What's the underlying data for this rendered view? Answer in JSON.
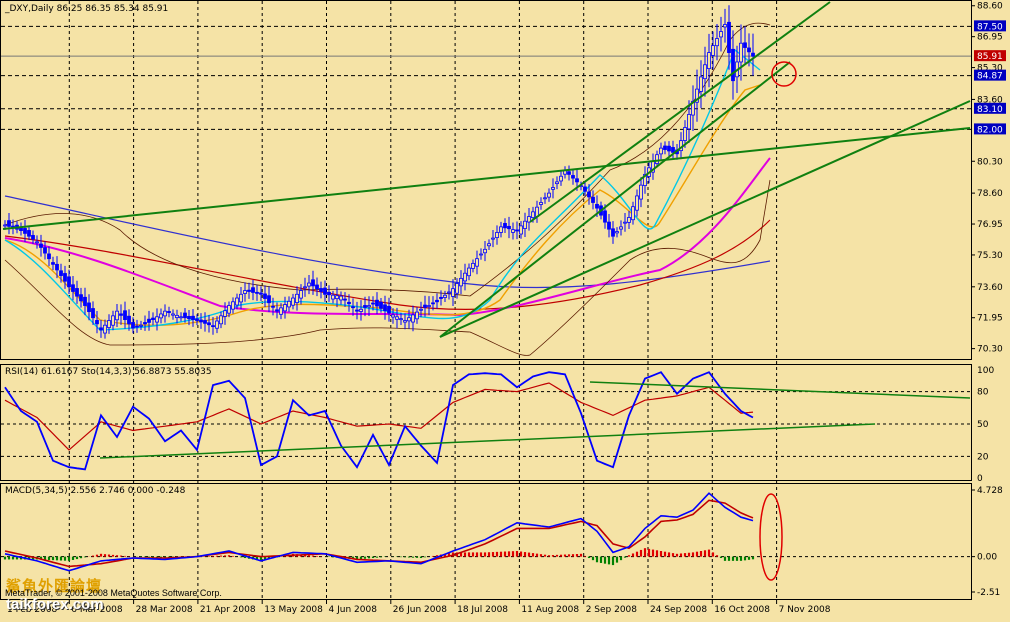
{
  "header": {
    "main": "_DXY,Daily  86.25 86.35 85.34 85.91",
    "rsi": "RSI(14) 61.6167  Sto(14,3,3) 56.8873 55.8035",
    "macd": "MACD(5,34,5) 2.556 2.746 0.000 -0.248"
  },
  "footer": {
    "watermark_cn": "鯊魚外匯論壇",
    "watermark_site": "taikforex.com",
    "copyright": "MetaTrader, © 2001-2008 MetaQuotes Software Corp."
  },
  "colors": {
    "background": "#f5e3a6",
    "price": "#0000ff",
    "ema_fast": "#00c8e8",
    "ema_mid": "#f0a000",
    "ma_slow": "#e000e0",
    "ma_long": "#3030d0",
    "ma_red": "#c00000",
    "bands": "#5a1a00",
    "trendline": "#108010",
    "stoch": "#0000ff",
    "signal": "#c00000",
    "circle": "#e00000"
  },
  "chart_data": [
    {
      "type": "candlestick",
      "title": "_DXY,Daily  86.25 86.35 85.34 85.91",
      "x_tick_labels": [
        "1 Feb 2008",
        "6 Mar 2008",
        "28 Mar 2008",
        "21 Apr 2008",
        "13 May 2008",
        "4 Jun 2008",
        "26 Jun 2008",
        "18 Jul 2008",
        "11 Aug 2008",
        "2 Sep 2008",
        "24 Sep 2008",
        "16 Oct 2008",
        "7 Nov 2008"
      ],
      "y_tick_labels": [
        "88.60",
        "86.95",
        "85.30",
        "83.60",
        "80.30",
        "78.60",
        "76.95",
        "75.30",
        "73.60",
        "71.95",
        "70.30"
      ],
      "ylim": [
        69.8,
        88.8
      ],
      "price_markers": [
        {
          "value": 87.5,
          "label": "87.50",
          "style": "highlight"
        },
        {
          "value": 85.91,
          "label": "85.91",
          "style": "current"
        },
        {
          "value": 84.87,
          "label": "84.87",
          "style": "highlight"
        },
        {
          "value": 83.1,
          "label": "83.10",
          "style": "highlight"
        },
        {
          "value": 82.0,
          "label": "82.00",
          "style": "highlight"
        }
      ],
      "close_path": [
        [
          0,
          76.9
        ],
        [
          4,
          76.6
        ],
        [
          8,
          76.0
        ],
        [
          12,
          74.8
        ],
        [
          16,
          73.6
        ],
        [
          20,
          72.6
        ],
        [
          24,
          71.3
        ],
        [
          28,
          72.3
        ],
        [
          32,
          71.4
        ],
        [
          36,
          71.7
        ],
        [
          40,
          72.3
        ],
        [
          44,
          72.0
        ],
        [
          48,
          71.8
        ],
        [
          52,
          71.5
        ],
        [
          56,
          72.6
        ],
        [
          60,
          73.4
        ],
        [
          64,
          73.2
        ],
        [
          68,
          72.3
        ],
        [
          72,
          73.0
        ],
        [
          76,
          73.8
        ],
        [
          80,
          73.2
        ],
        [
          84,
          73.1
        ],
        [
          88,
          72.3
        ],
        [
          92,
          72.7
        ],
        [
          96,
          72.2
        ],
        [
          100,
          71.8
        ],
        [
          104,
          72.4
        ],
        [
          108,
          72.8
        ],
        [
          112,
          73.5
        ],
        [
          116,
          74.6
        ],
        [
          120,
          75.6
        ],
        [
          124,
          76.8
        ],
        [
          128,
          76.6
        ],
        [
          132,
          77.6
        ],
        [
          136,
          78.6
        ],
        [
          140,
          79.8
        ],
        [
          144,
          79.0
        ],
        [
          148,
          77.8
        ],
        [
          152,
          76.3
        ],
        [
          156,
          77.3
        ],
        [
          160,
          79.6
        ],
        [
          164,
          81.0
        ],
        [
          168,
          80.7
        ],
        [
          172,
          83.5
        ],
        [
          176,
          86.1
        ],
        [
          180,
          87.6
        ],
        [
          182,
          84.6
        ],
        [
          184,
          86.6
        ],
        [
          187,
          85.91
        ]
      ],
      "rsi_stoch": {
        "ylim": [
          0,
          100
        ],
        "levels": [
          100,
          80,
          50,
          20,
          0
        ],
        "stoch_path": [
          [
            0,
            84
          ],
          [
            4,
            62
          ],
          [
            8,
            52
          ],
          [
            12,
            16
          ],
          [
            16,
            10
          ],
          [
            20,
            8
          ],
          [
            24,
            58
          ],
          [
            28,
            38
          ],
          [
            32,
            66
          ],
          [
            36,
            55
          ],
          [
            40,
            34
          ],
          [
            44,
            44
          ],
          [
            48,
            26
          ],
          [
            52,
            86
          ],
          [
            56,
            90
          ],
          [
            60,
            74
          ],
          [
            64,
            12
          ],
          [
            68,
            20
          ],
          [
            72,
            72
          ],
          [
            76,
            58
          ],
          [
            80,
            62
          ],
          [
            84,
            30
          ],
          [
            88,
            10
          ],
          [
            92,
            40
          ],
          [
            96,
            12
          ],
          [
            100,
            48
          ],
          [
            104,
            30
          ],
          [
            108,
            14
          ],
          [
            112,
            86
          ],
          [
            116,
            96
          ],
          [
            120,
            97
          ],
          [
            124,
            96
          ],
          [
            128,
            84
          ],
          [
            132,
            94
          ],
          [
            136,
            98
          ],
          [
            140,
            96
          ],
          [
            144,
            60
          ],
          [
            148,
            16
          ],
          [
            152,
            10
          ],
          [
            156,
            58
          ],
          [
            160,
            92
          ],
          [
            164,
            98
          ],
          [
            168,
            78
          ],
          [
            172,
            92
          ],
          [
            176,
            98
          ],
          [
            180,
            78
          ],
          [
            184,
            62
          ],
          [
            187,
            56
          ]
        ],
        "signal_path": [
          [
            0,
            72
          ],
          [
            8,
            56
          ],
          [
            16,
            26
          ],
          [
            24,
            52
          ],
          [
            32,
            44
          ],
          [
            40,
            48
          ],
          [
            48,
            52
          ],
          [
            56,
            64
          ],
          [
            64,
            50
          ],
          [
            72,
            62
          ],
          [
            80,
            56
          ],
          [
            88,
            48
          ],
          [
            96,
            50
          ],
          [
            104,
            46
          ],
          [
            112,
            70
          ],
          [
            120,
            82
          ],
          [
            128,
            80
          ],
          [
            136,
            88
          ],
          [
            144,
            70
          ],
          [
            152,
            58
          ],
          [
            160,
            72
          ],
          [
            168,
            76
          ],
          [
            176,
            84
          ],
          [
            184,
            60
          ],
          [
            187,
            61
          ]
        ]
      },
      "macd": {
        "ylim": [
          -2.51,
          4.728
        ],
        "y_tick_labels": [
          "4.728",
          "0.00",
          "-2.51"
        ],
        "macd_path": [
          [
            0,
            0.2
          ],
          [
            8,
            -0.3
          ],
          [
            16,
            -1.0
          ],
          [
            24,
            -0.3
          ],
          [
            32,
            -0.1
          ],
          [
            40,
            -0.2
          ],
          [
            48,
            0.0
          ],
          [
            56,
            0.4
          ],
          [
            64,
            -0.3
          ],
          [
            72,
            0.3
          ],
          [
            80,
            0.2
          ],
          [
            88,
            -0.4
          ],
          [
            96,
            -0.3
          ],
          [
            104,
            -0.5
          ],
          [
            112,
            0.4
          ],
          [
            120,
            1.2
          ],
          [
            128,
            2.4
          ],
          [
            136,
            2.1
          ],
          [
            144,
            2.7
          ],
          [
            148,
            1.8
          ],
          [
            152,
            0.3
          ],
          [
            156,
            0.7
          ],
          [
            160,
            2.0
          ],
          [
            164,
            2.9
          ],
          [
            168,
            2.8
          ],
          [
            172,
            3.3
          ],
          [
            176,
            4.5
          ],
          [
            180,
            3.5
          ],
          [
            184,
            2.8
          ],
          [
            187,
            2.556
          ]
        ],
        "signal_path": [
          [
            0,
            0.4
          ],
          [
            8,
            -0.1
          ],
          [
            16,
            -0.7
          ],
          [
            24,
            -0.5
          ],
          [
            32,
            -0.1
          ],
          [
            40,
            -0.1
          ],
          [
            48,
            0.0
          ],
          [
            56,
            0.3
          ],
          [
            64,
            0.0
          ],
          [
            72,
            0.1
          ],
          [
            80,
            0.2
          ],
          [
            88,
            -0.2
          ],
          [
            96,
            -0.3
          ],
          [
            104,
            -0.4
          ],
          [
            112,
            0.1
          ],
          [
            120,
            0.9
          ],
          [
            128,
            2.0
          ],
          [
            136,
            2.0
          ],
          [
            144,
            2.5
          ],
          [
            148,
            2.2
          ],
          [
            152,
            0.9
          ],
          [
            156,
            0.6
          ],
          [
            160,
            1.4
          ],
          [
            164,
            2.5
          ],
          [
            168,
            2.6
          ],
          [
            172,
            3.0
          ],
          [
            176,
            4.0
          ],
          [
            180,
            3.8
          ],
          [
            184,
            3.1
          ],
          [
            187,
            2.746
          ]
        ]
      }
    }
  ]
}
